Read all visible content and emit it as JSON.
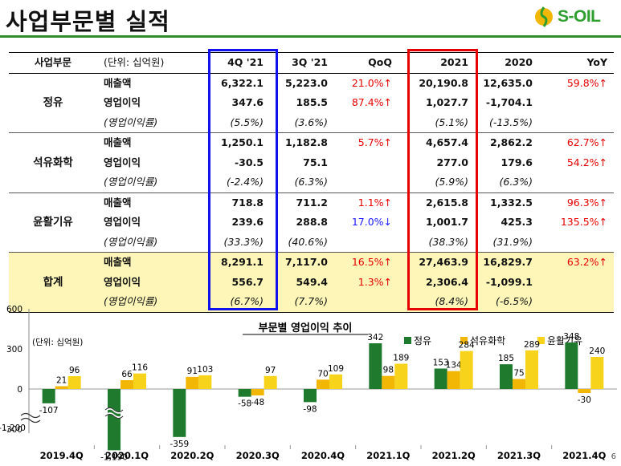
{
  "page": {
    "title": "사업부문별 실적",
    "logo_text": "S-OIL",
    "page_number": "6"
  },
  "colors": {
    "accent_green": "#2e8b2e",
    "highlight_blue": "#1111ee",
    "highlight_red": "#e60000",
    "total_fill": "#fdf6b8"
  },
  "table": {
    "header": {
      "segment": "사업부문",
      "unit": "(단위: 십억원)",
      "q4_21": "4Q '21",
      "q3_21": "3Q '21",
      "qoq": "QoQ",
      "y2021": "2021",
      "y2020": "2020",
      "yoy": "YoY"
    },
    "groups": [
      {
        "name": "정유",
        "rows": [
          {
            "label": "매출액",
            "q4": "6,322.1",
            "q3": "5,223.0",
            "qoq": "21.0%↑",
            "y2021": "20,190.8",
            "y2020": "12,635.0",
            "yoy": "59.8%↑"
          },
          {
            "label": "영업이익",
            "q4": "347.6",
            "q3": "185.5",
            "qoq": "87.4%↑",
            "y2021": "1,027.7",
            "y2020": "-1,704.1",
            "yoy": ""
          },
          {
            "label": "(영업이익률)",
            "q4": "(5.5%)",
            "q3": "(3.6%)",
            "qoq": "",
            "y2021": "(5.1%)",
            "y2020": "(-13.5%)",
            "yoy": ""
          }
        ]
      },
      {
        "name": "석유화학",
        "rows": [
          {
            "label": "매출액",
            "q4": "1,250.1",
            "q3": "1,182.8",
            "qoq": "5.7%↑",
            "y2021": "4,657.4",
            "y2020": "2,862.2",
            "yoy": "62.7%↑"
          },
          {
            "label": "영업이익",
            "q4": "-30.5",
            "q3": "75.1",
            "qoq": "",
            "y2021": "277.0",
            "y2020": "179.6",
            "yoy": "54.2%↑"
          },
          {
            "label": "(영업이익률)",
            "q4": "(-2.4%)",
            "q3": "(6.3%)",
            "qoq": "",
            "y2021": "(5.9%)",
            "y2020": "(6.3%)",
            "yoy": ""
          }
        ]
      },
      {
        "name": "윤활기유",
        "rows": [
          {
            "label": "매출액",
            "q4": "718.8",
            "q3": "711.2",
            "qoq": "1.1%↑",
            "y2021": "2,615.8",
            "y2020": "1,332.5",
            "yoy": "96.3%↑"
          },
          {
            "label": "영업이익",
            "q4": "239.6",
            "q3": "288.8",
            "qoq": "17.0%↓",
            "y2021": "1,001.7",
            "y2020": "425.3",
            "yoy": "135.5%↑"
          },
          {
            "label": "(영업이익률)",
            "q4": "(33.3%)",
            "q3": "(40.6%)",
            "qoq": "",
            "y2021": "(38.3%)",
            "y2020": "(31.9%)",
            "yoy": ""
          }
        ]
      },
      {
        "name": "합계",
        "rows": [
          {
            "label": "매출액",
            "q4": "8,291.1",
            "q3": "7,117.0",
            "qoq": "16.5%↑",
            "y2021": "27,463.9",
            "y2020": "16,829.7",
            "yoy": "63.2%↑"
          },
          {
            "label": "영업이익",
            "q4": "556.7",
            "q3": "549.4",
            "qoq": "1.3%↑",
            "y2021": "2,306.4",
            "y2020": "-1,099.1",
            "yoy": ""
          },
          {
            "label": "(영업이익률)",
            "q4": "(6.7%)",
            "q3": "(7.7%)",
            "qoq": "",
            "y2021": "(8.4%)",
            "y2020": "(-6.5%)",
            "yoy": ""
          }
        ]
      }
    ]
  },
  "chart_data": {
    "type": "bar",
    "title": "부문별 영업이익 추이",
    "unit_label": "(단위: 십억원)",
    "categories": [
      "2019.4Q",
      "2020.1Q",
      "2020.2Q",
      "2020.3Q",
      "2020.4Q",
      "2021.1Q",
      "2021.2Q",
      "2021.3Q",
      "2021.4Q"
    ],
    "series": [
      {
        "name": "정유",
        "color": "#1f7a2e",
        "values": [
          -107,
          -1190,
          -359,
          -58,
          -98,
          342,
          153,
          185,
          348
        ],
        "labels": [
          "-107",
          "-1,190",
          "-359",
          "-58",
          "-98",
          "342",
          "153",
          "185",
          "348"
        ]
      },
      {
        "name": "석유화학",
        "color": "#f2b705",
        "values": [
          21,
          66,
          91,
          -48,
          70,
          98,
          134,
          75,
          -30
        ],
        "labels": [
          "21",
          "66",
          "91",
          "-48",
          "70",
          "98",
          "134",
          "75",
          "-30"
        ]
      },
      {
        "name": "윤활기유",
        "color": "#f7d31c",
        "values": [
          96,
          116,
          103,
          97,
          109,
          189,
          284,
          289,
          240
        ],
        "labels": [
          "96",
          "116",
          "103",
          "97",
          "109",
          "189",
          "284",
          "289",
          "240"
        ]
      }
    ],
    "y_ticks": [
      "600",
      "300",
      "0",
      "-300",
      "-1,200"
    ],
    "ylim": [
      -1200,
      600
    ],
    "axis_break": true
  }
}
